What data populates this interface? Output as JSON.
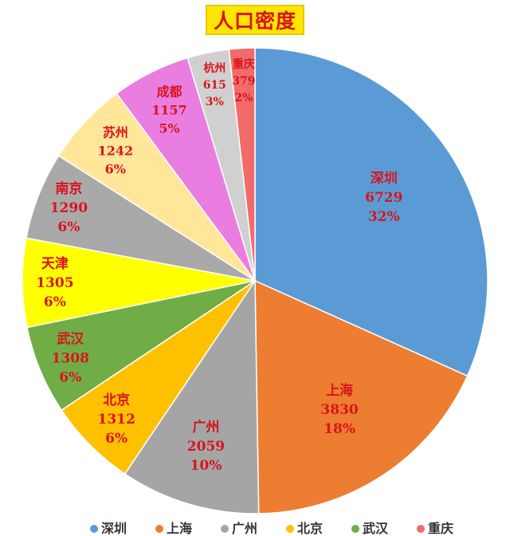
{
  "chart_data": {
    "type": "pie",
    "title": "人口密度",
    "slices": [
      {
        "name": "深圳",
        "value": 6729,
        "percent": "32%",
        "color": "#5b9bd5"
      },
      {
        "name": "上海",
        "value": 3830,
        "percent": "18%",
        "color": "#ed7d31"
      },
      {
        "name": "广州",
        "value": 2059,
        "percent": "10%",
        "color": "#a5a5a5"
      },
      {
        "name": "北京",
        "value": 1312,
        "percent": "6%",
        "color": "#ffc000"
      },
      {
        "name": "武汉",
        "value": 1308,
        "percent": "6%",
        "color": "#70ad47"
      },
      {
        "name": "天津",
        "value": 1305,
        "percent": "6%",
        "color": "#ffff00"
      },
      {
        "name": "南京",
        "value": 1290,
        "percent": "6%",
        "color": "#a9a9a9"
      },
      {
        "name": "苏州",
        "value": 1242,
        "percent": "6%",
        "color": "#ffe699"
      },
      {
        "name": "成都",
        "value": 1157,
        "percent": "5%",
        "color": "#ea7ee0"
      },
      {
        "name": "杭州",
        "value": 615,
        "percent": "3%",
        "color": "#d0d0d0"
      },
      {
        "name": "重庆",
        "value": 379,
        "percent": "2%",
        "color": "#f26b6b"
      }
    ],
    "legend": {
      "placement": "bottom",
      "entries": [
        "深圳",
        "上海",
        "广州",
        "北京",
        "武汉",
        "重庆"
      ]
    }
  }
}
